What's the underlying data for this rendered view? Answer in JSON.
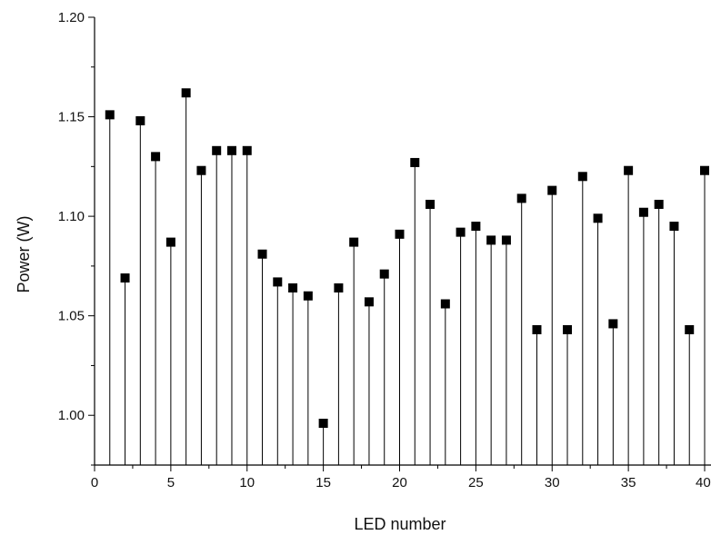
{
  "chart_data": {
    "type": "scatter",
    "style": "stem",
    "title": "",
    "xlabel": "LED number",
    "ylabel": "Power (W)",
    "xlim": [
      0,
      40
    ],
    "ylim": [
      0.975,
      1.2
    ],
    "xticks": [
      0,
      5,
      10,
      15,
      20,
      25,
      30,
      35,
      40
    ],
    "xtick_labels": [
      "0",
      "5",
      "10",
      "15",
      "20",
      "25",
      "30",
      "35",
      "40"
    ],
    "yticks": [
      1.0,
      1.05,
      1.1,
      1.15,
      1.2
    ],
    "ytick_labels": [
      "1.00",
      "1.05",
      "1.10",
      "1.15",
      "1.20"
    ],
    "grid": false,
    "marker": "square",
    "color": "#000000",
    "series": [
      {
        "x": [
          1,
          2,
          3,
          4,
          5,
          6,
          7,
          8,
          9,
          10,
          11,
          12,
          13,
          14,
          15,
          16,
          17,
          18,
          19,
          20,
          21,
          22,
          23,
          24,
          25,
          26,
          27,
          28,
          29,
          30,
          31,
          32,
          33,
          34,
          35,
          36,
          37,
          38,
          39,
          40
        ],
        "values": [
          1.151,
          1.069,
          1.148,
          1.13,
          1.087,
          1.162,
          1.123,
          1.133,
          1.133,
          1.133,
          1.081,
          1.067,
          1.064,
          1.06,
          0.996,
          1.064,
          1.087,
          1.057,
          1.071,
          1.091,
          1.127,
          1.106,
          1.056,
          1.092,
          1.095,
          1.088,
          1.088,
          1.109,
          1.043,
          1.113,
          1.043,
          1.12,
          1.099,
          1.046,
          1.123,
          1.102,
          1.106,
          1.095,
          1.043,
          1.123
        ]
      }
    ]
  }
}
